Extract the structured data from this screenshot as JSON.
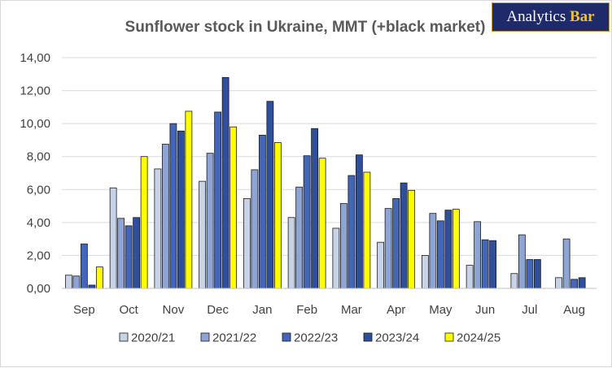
{
  "brand": {
    "text": "Analytics",
    "accent": "Bar"
  },
  "chart_data": {
    "type": "bar",
    "title": "Sunflower stock in Ukraine, MMT (+black market)",
    "categories": [
      "Sep",
      "Oct",
      "Nov",
      "Dec",
      "Jan",
      "Feb",
      "Mar",
      "Apr",
      "May",
      "Jun",
      "Jul",
      "Aug"
    ],
    "ylim": [
      0,
      14
    ],
    "yticks": [
      "0,00",
      "2,00",
      "4,00",
      "6,00",
      "8,00",
      "10,00",
      "12,00",
      "14,00"
    ],
    "grid": true,
    "legend_position": "bottom",
    "series": [
      {
        "name": "2020/21",
        "color": "#c9d3e8",
        "values": [
          0.8,
          6.1,
          7.25,
          6.5,
          5.45,
          4.3,
          3.65,
          2.8,
          2.0,
          1.4,
          0.9,
          0.65
        ]
      },
      {
        "name": "2021/22",
        "color": "#8da4d4",
        "values": [
          0.75,
          4.25,
          8.75,
          8.2,
          7.2,
          6.15,
          5.15,
          4.85,
          4.55,
          4.05,
          3.25,
          3.0
        ]
      },
      {
        "name": "2022/23",
        "color": "#4466b8",
        "values": [
          2.7,
          3.8,
          10.0,
          10.7,
          9.3,
          8.05,
          6.85,
          5.45,
          4.1,
          2.95,
          1.75,
          0.55
        ]
      },
      {
        "name": "2023/24",
        "color": "#2f4f9c",
        "values": [
          0.2,
          4.3,
          9.55,
          12.8,
          11.35,
          9.7,
          8.1,
          6.4,
          4.75,
          2.9,
          1.75,
          0.65
        ]
      },
      {
        "name": "2024/25",
        "color": "#ffff00",
        "values": [
          1.3,
          8.0,
          10.75,
          9.8,
          8.85,
          7.9,
          7.05,
          5.95,
          4.8,
          null,
          null,
          null
        ]
      }
    ]
  }
}
